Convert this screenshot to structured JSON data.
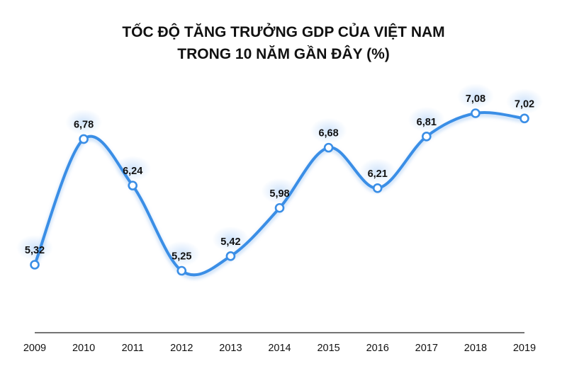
{
  "chart_data": {
    "type": "line",
    "title_line1": "TỐC ĐỘ TĂNG TRƯỞNG GDP CỦA VIỆT NAM",
    "title_line2": "TRONG 10 NĂM GẦN ĐÂY (%)",
    "x": [
      "2009",
      "2010",
      "2011",
      "2012",
      "2013",
      "2014",
      "2015",
      "2016",
      "2017",
      "2018",
      "2019"
    ],
    "series": [
      {
        "values": [
          5.32,
          6.78,
          6.24,
          5.25,
          5.42,
          5.98,
          6.68,
          6.21,
          6.81,
          7.08,
          7.02
        ],
        "labels": [
          "5,32",
          "6,78",
          "6,24",
          "5,25",
          "5,42",
          "5,98",
          "6,68",
          "6,21",
          "6,81",
          "7,08",
          "7,02"
        ]
      }
    ],
    "line_color": "#3a8ee6",
    "glow_color": "#cfe3fb",
    "axis_color": "#222222",
    "smooth": true,
    "grid": false,
    "y_axis_visible": false
  }
}
